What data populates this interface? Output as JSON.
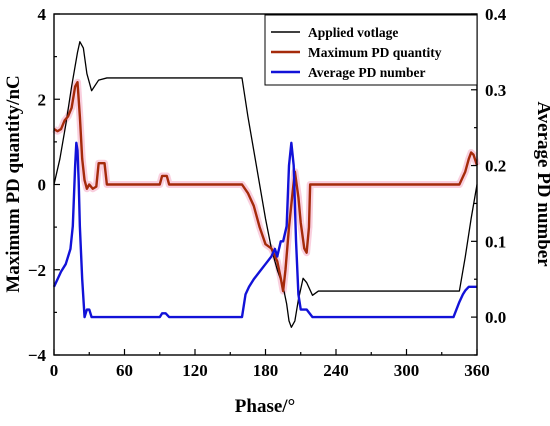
{
  "chart_data": {
    "type": "line",
    "title": "",
    "xlabel": "Phase/°",
    "ylabel_left": "Maximum PD quantity/nC",
    "ylabel_right": "Average PD number",
    "xlim": [
      0,
      360
    ],
    "ylim_left": [
      -4,
      4
    ],
    "ylim_right": [
      -0.05,
      0.4
    ],
    "xticks": [
      "0",
      "60",
      "120",
      "180",
      "240",
      "300",
      "360"
    ],
    "yticks_left": [
      "−4",
      "−2",
      "0",
      "2",
      "4"
    ],
    "yticks_right": [
      "0.0",
      "0.1",
      "0.2",
      "0.3",
      "0.4"
    ],
    "legend_position": "top-right",
    "grid": false,
    "series": [
      {
        "name": "Applied votlage",
        "color": "#000000",
        "axis": "left",
        "x": [
          0,
          5,
          10,
          15,
          20,
          22,
          25,
          28,
          32,
          38,
          45,
          60,
          100,
          140,
          160,
          165,
          170,
          175,
          180,
          185,
          190,
          195,
          198,
          200,
          202,
          205,
          208,
          212,
          215,
          220,
          225,
          240,
          280,
          320,
          345,
          350,
          355,
          360
        ],
        "y": [
          0.0,
          0.6,
          1.4,
          2.3,
          3.1,
          3.35,
          3.2,
          2.6,
          2.2,
          2.45,
          2.5,
          2.5,
          2.5,
          2.5,
          2.5,
          1.6,
          0.8,
          0.0,
          -0.8,
          -1.5,
          -2.0,
          -2.4,
          -2.8,
          -3.2,
          -3.35,
          -3.2,
          -2.7,
          -2.2,
          -2.3,
          -2.6,
          -2.5,
          -2.5,
          -2.5,
          -2.5,
          -2.5,
          -1.7,
          -0.8,
          0.0
        ]
      },
      {
        "name": "Maximum PD quantity",
        "color": "#a52a0a",
        "axis": "left",
        "x": [
          0,
          3,
          6,
          9,
          12,
          15,
          18,
          20,
          22,
          24,
          26,
          28,
          30,
          33,
          36,
          38,
          40,
          43,
          45,
          48,
          60,
          90,
          92,
          96,
          98,
          120,
          160,
          165,
          170,
          175,
          180,
          185,
          190,
          193,
          195,
          197,
          200,
          203,
          205,
          208,
          210,
          213,
          215,
          217,
          218,
          220,
          240,
          300,
          345,
          350,
          353,
          355,
          357,
          360
        ],
        "y": [
          1.3,
          1.25,
          1.3,
          1.5,
          1.6,
          1.8,
          2.3,
          2.4,
          1.6,
          0.6,
          0.1,
          -0.1,
          0.0,
          -0.1,
          -0.05,
          0.5,
          0.5,
          0.5,
          0.0,
          0.0,
          0.0,
          0.0,
          0.2,
          0.2,
          0.0,
          0.0,
          0.0,
          -0.2,
          -0.5,
          -1.0,
          -1.4,
          -1.5,
          -1.8,
          -2.2,
          -2.5,
          -2.0,
          -1.0,
          -0.2,
          0.3,
          -0.3,
          -0.9,
          -1.5,
          -1.6,
          -1.0,
          0.0,
          0.0,
          0.0,
          0.0,
          0.0,
          0.3,
          0.6,
          0.75,
          0.7,
          0.45
        ]
      },
      {
        "name": "Average PD number",
        "color": "#1212d8",
        "axis": "right",
        "x": [
          0,
          3,
          6,
          10,
          14,
          16,
          18,
          19,
          20,
          21,
          22,
          24,
          26,
          27,
          28,
          30,
          32,
          35,
          38,
          45,
          60,
          90,
          92,
          95,
          98,
          120,
          160,
          163,
          166,
          170,
          175,
          180,
          185,
          188,
          190,
          193,
          195,
          198,
          200,
          202,
          204,
          206,
          208,
          210,
          213,
          215,
          220,
          240,
          300,
          340,
          345,
          348,
          350,
          353,
          356,
          360
        ],
        "y": [
          0.04,
          0.05,
          0.06,
          0.07,
          0.09,
          0.12,
          0.2,
          0.23,
          0.22,
          0.18,
          0.12,
          0.05,
          0.0,
          0.005,
          0.01,
          0.01,
          0.0,
          0.0,
          0.0,
          0.0,
          0.0,
          0.0,
          0.005,
          0.005,
          0.0,
          0.0,
          0.0,
          0.03,
          0.04,
          0.05,
          0.06,
          0.07,
          0.08,
          0.09,
          0.08,
          0.1,
          0.1,
          0.12,
          0.2,
          0.23,
          0.2,
          0.1,
          0.03,
          0.01,
          0.01,
          0.01,
          0.0,
          0.0,
          0.0,
          0.0,
          0.02,
          0.03,
          0.035,
          0.04,
          0.04,
          0.04
        ]
      }
    ]
  }
}
